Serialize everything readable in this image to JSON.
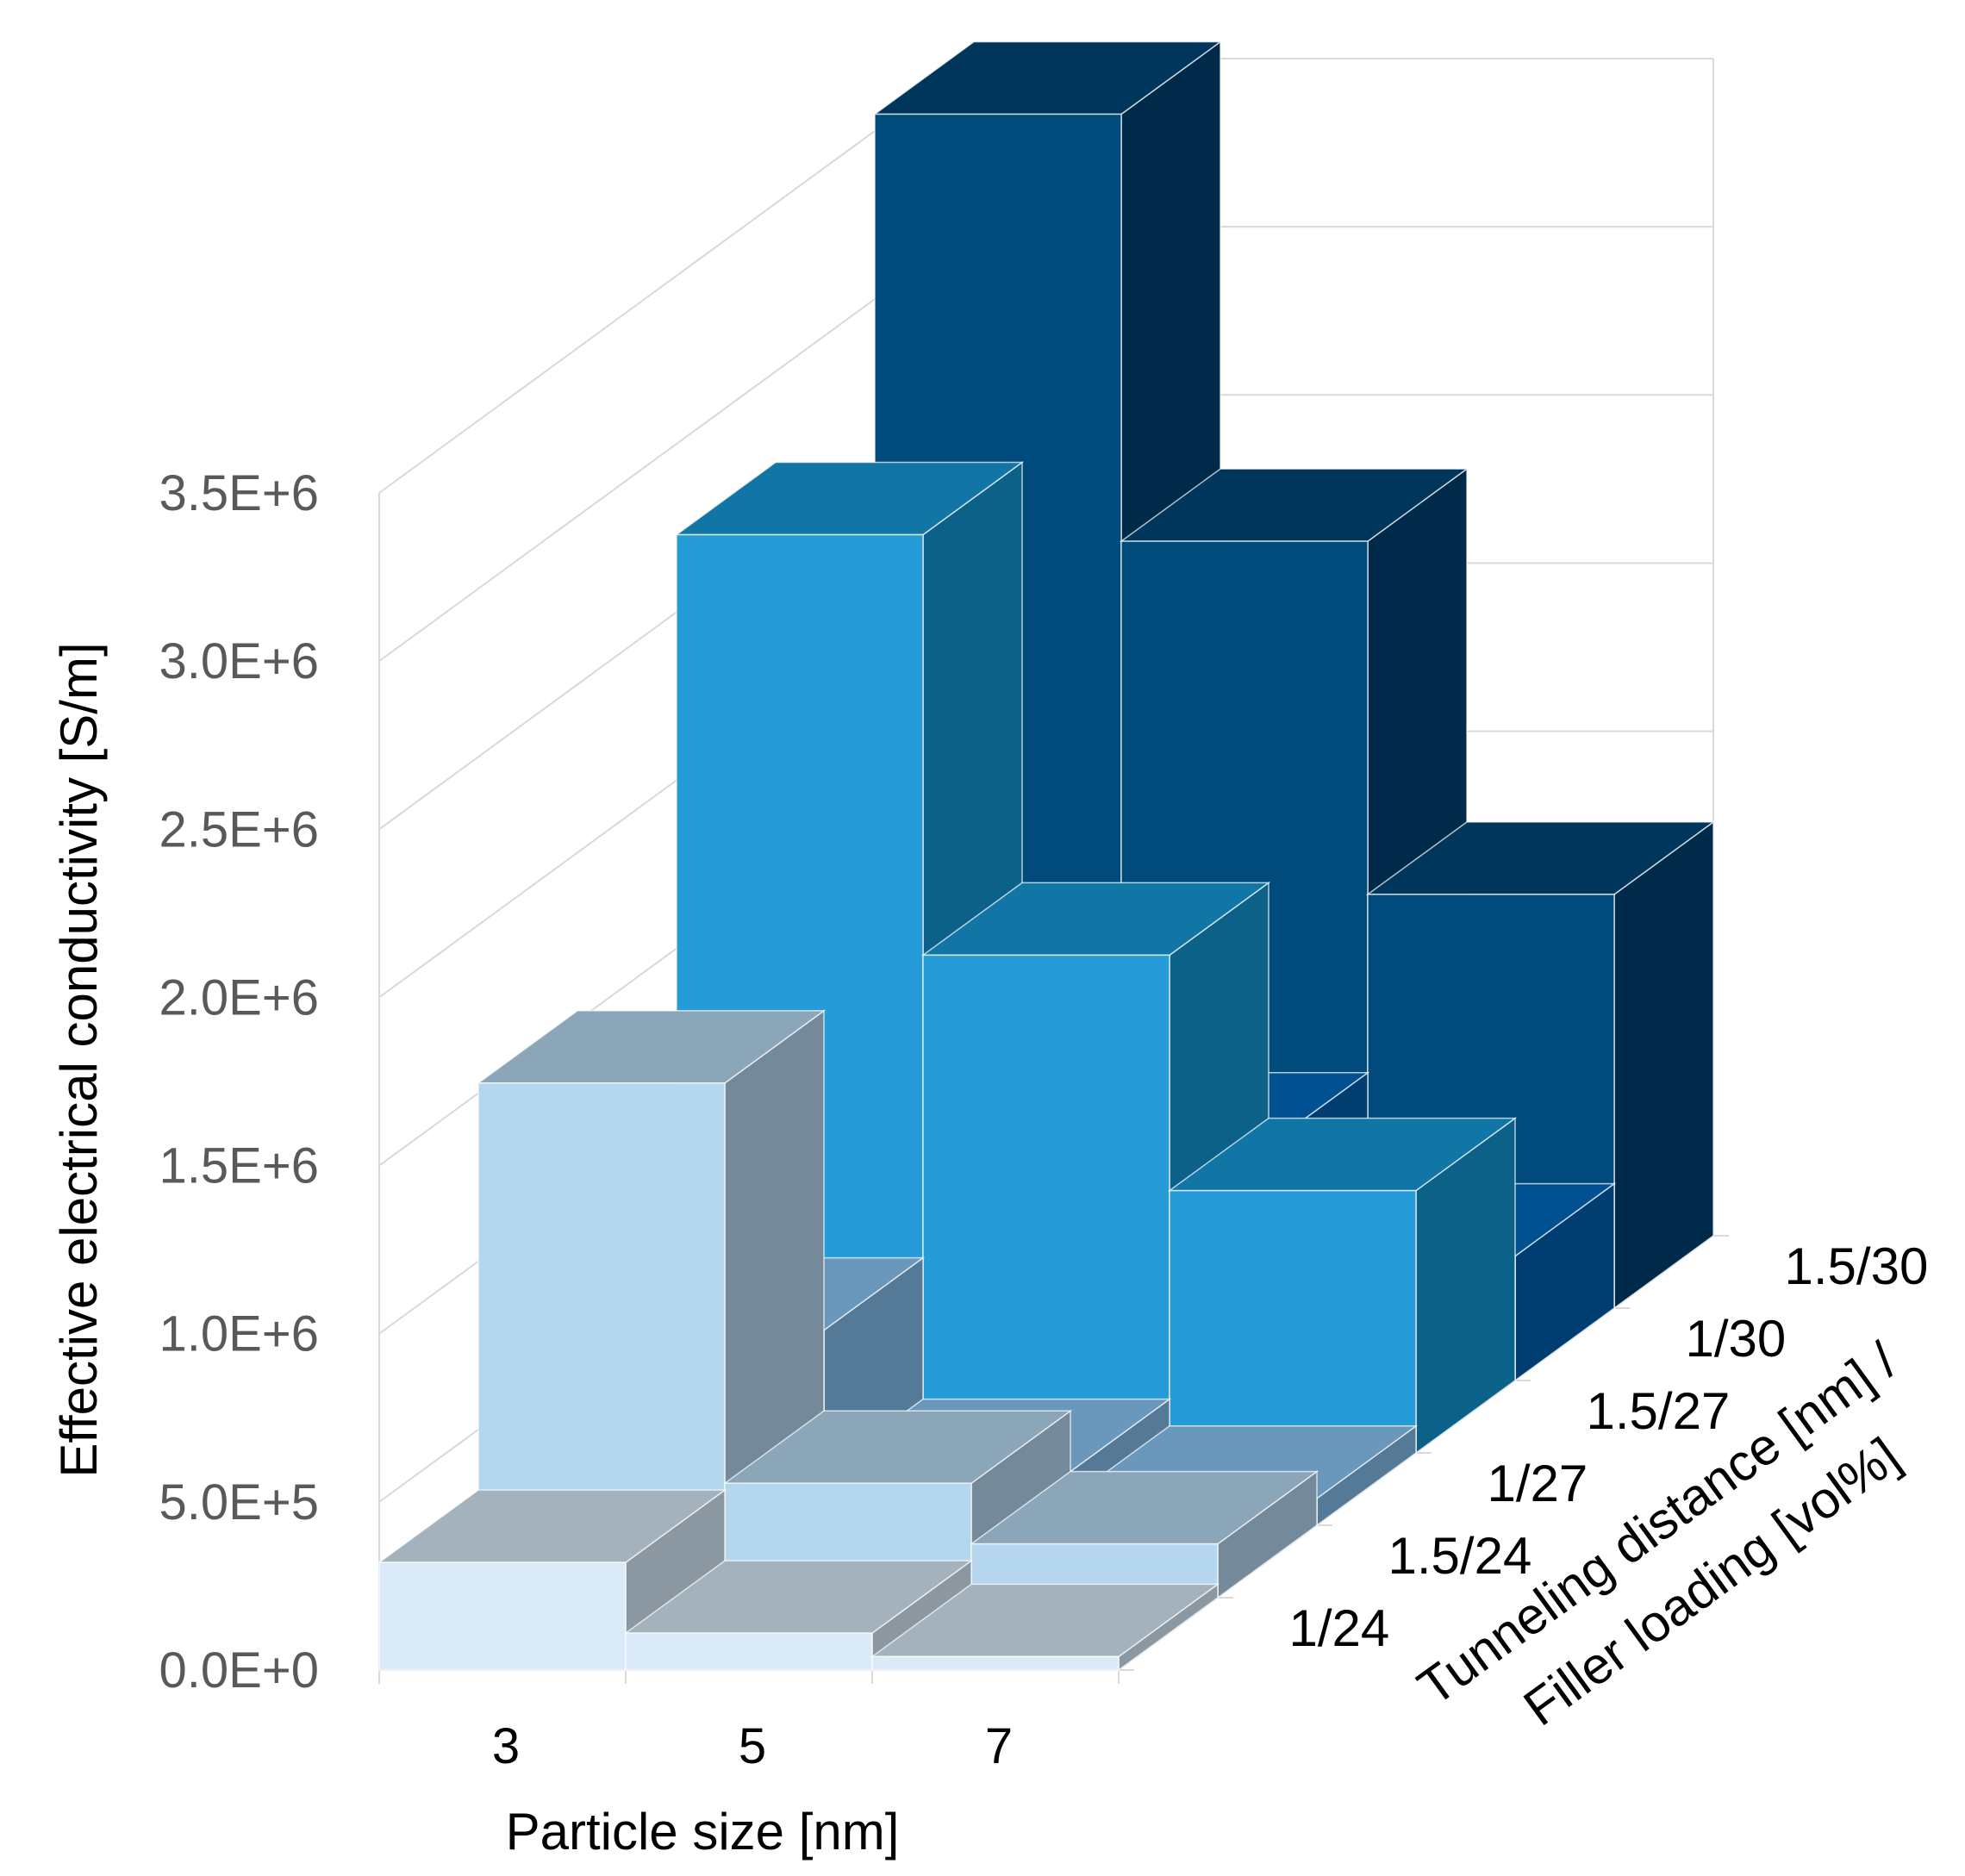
{
  "chart_data": {
    "type": "bar3d",
    "xlabel": "Particle size [nm]",
    "ylabel": "Effective electrical conductivity [S/m]",
    "zlabel_lines": [
      "Tunneling distance [nm] /",
      "Filler loading [vol%]"
    ],
    "x_categories": [
      "3",
      "5",
      "7"
    ],
    "y_ticks": [
      "0.0E+0",
      "5.0E+5",
      "1.0E+6",
      "1.5E+6",
      "2.0E+6",
      "2.5E+6",
      "3.0E+6",
      "3.5E+6"
    ],
    "ylim": [
      0,
      3500000
    ],
    "grid": true,
    "series": [
      {
        "name": "1/24",
        "values": [
          320000,
          110000,
          40000
        ],
        "colors": {
          "front": "#dbeaf8",
          "top": "#a3b2bc",
          "side": "#8b98a1"
        }
      },
      {
        "name": "1.5/24",
        "values": [
          1530000,
          340000,
          160000
        ],
        "colors": {
          "front": "#b4d7ef",
          "top": "#8ba6b8",
          "side": "#74899a"
        }
      },
      {
        "name": "1/27",
        "values": [
          580000,
          160000,
          80000
        ],
        "colors": {
          "front": "#6f98bc",
          "top": "#6a97bc",
          "side": "#557a98"
        }
      },
      {
        "name": "1.5/27",
        "values": [
          2730000,
          1480000,
          780000
        ],
        "colors": {
          "front": "#259bd8",
          "top": "#1175a6",
          "side": "#0c6189"
        }
      },
      {
        "name": "1/30",
        "values": [
          1240000,
          700000,
          370000
        ],
        "colors": {
          "front": "#005092",
          "top": "#005092",
          "side": "#003d70"
        }
      },
      {
        "name": "1.5/30",
        "values": [
          3550000,
          2280000,
          1230000
        ],
        "colors": {
          "front": "#004b7c",
          "top": "#00365c",
          "side": "#002a4a"
        }
      }
    ]
  }
}
